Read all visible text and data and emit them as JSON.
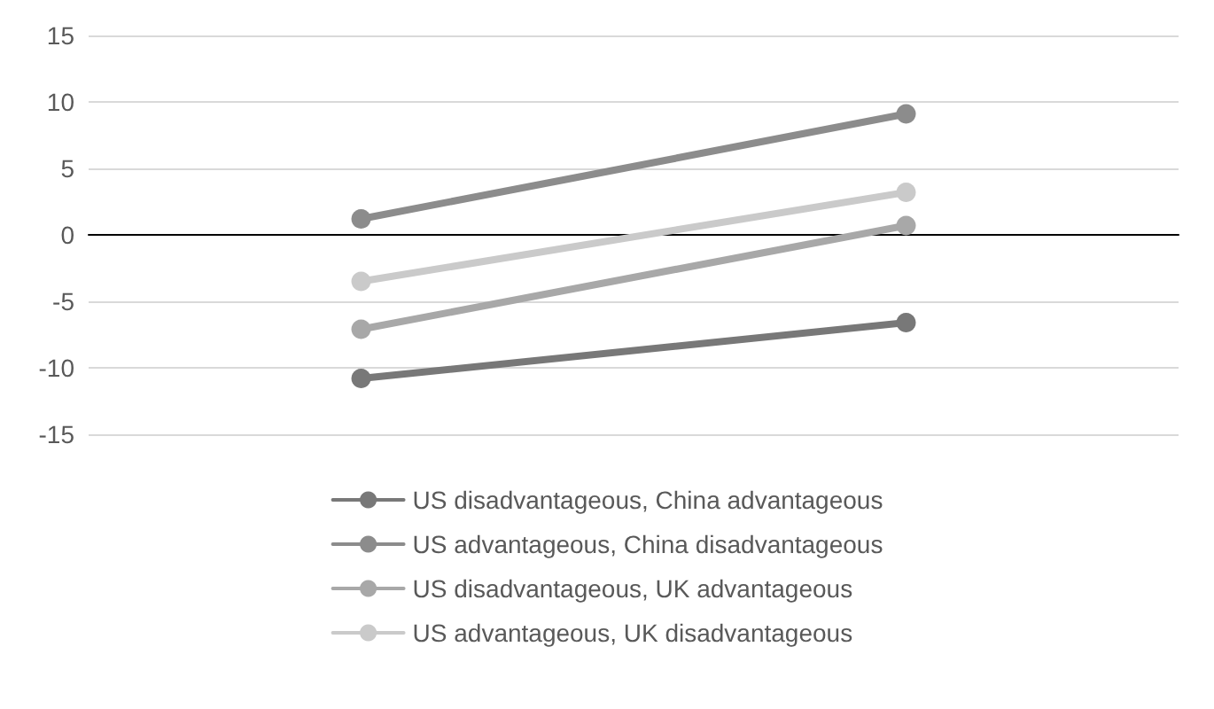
{
  "chart_data": {
    "type": "line",
    "categories": [
      null,
      null
    ],
    "series": [
      {
        "name": "US disadvantageous, China advantageous",
        "color": "#787878",
        "values": [
          -10.8,
          -6.6
        ]
      },
      {
        "name": "US advantageous, China disadvantageous",
        "color": "#8c8c8c",
        "values": [
          1.2,
          9.1
        ]
      },
      {
        "name": "US disadvantageous, UK advantageous",
        "color": "#a8a8a8",
        "values": [
          -7.1,
          0.7
        ]
      },
      {
        "name": "US advantageous, UK disadvantageous",
        "color": "#cacaca",
        "values": [
          -3.5,
          3.2
        ]
      }
    ],
    "ylim": [
      -15,
      15
    ],
    "yticks": [
      -15,
      -10,
      -5,
      0,
      5,
      10,
      15
    ],
    "grid": "y",
    "legend": "bottom",
    "marker": "circle",
    "line_style": "solid"
  }
}
